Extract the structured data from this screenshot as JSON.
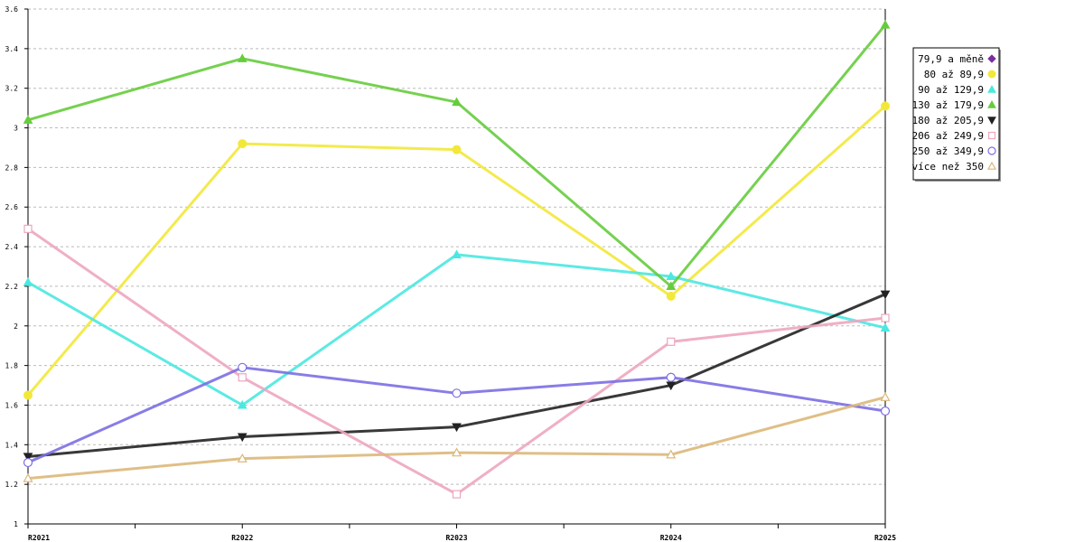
{
  "chart_data": {
    "type": "line",
    "x": [
      "R2021",
      "R2022",
      "R2023",
      "R2024",
      "R2025"
    ],
    "ylim": [
      1,
      3.6
    ],
    "yticks": [
      "1",
      "1.2",
      "1.4",
      "1.6",
      "1.8",
      "2",
      "2.2",
      "2.4",
      "2.6",
      "2.8",
      "3",
      "3.2",
      "3.4",
      "3.6"
    ],
    "grid": true,
    "legend_position": "right",
    "series": [
      {
        "name": "79,9 a měně",
        "color": "#7b2f9e",
        "marker": "diamond",
        "values": [
          null,
          null,
          null,
          null,
          null
        ]
      },
      {
        "name": "80 až 89,9",
        "color": "#f2e83a",
        "marker": "circle-filled",
        "values": [
          1.65,
          2.92,
          2.89,
          2.15,
          3.11
        ]
      },
      {
        "name": "90 až 129,9",
        "color": "#4ae8e0",
        "marker": "triangle-up-filled",
        "values": [
          2.22,
          1.6,
          2.36,
          2.25,
          1.99
        ]
      },
      {
        "name": "130 až 179,9",
        "color": "#66cc3c",
        "marker": "triangle-up-filled",
        "values": [
          3.04,
          3.35,
          3.13,
          2.2,
          3.52
        ]
      },
      {
        "name": "180 až 205,9",
        "color": "#222222",
        "marker": "triangle-down-filled",
        "values": [
          1.34,
          1.44,
          1.49,
          1.7,
          2.16
        ]
      },
      {
        "name": "206 až 249,9",
        "color": "#eda6bf",
        "marker": "square-open",
        "values": [
          2.49,
          1.74,
          1.15,
          1.92,
          2.04
        ]
      },
      {
        "name": "250 až 349,9",
        "color": "#7b6fe3",
        "marker": "circle-open",
        "values": [
          1.31,
          1.79,
          1.66,
          1.74,
          1.57
        ]
      },
      {
        "name": "více než 350",
        "color": "#dcb87a",
        "marker": "triangle-up-open",
        "values": [
          1.23,
          1.33,
          1.36,
          1.35,
          1.64
        ]
      }
    ]
  }
}
